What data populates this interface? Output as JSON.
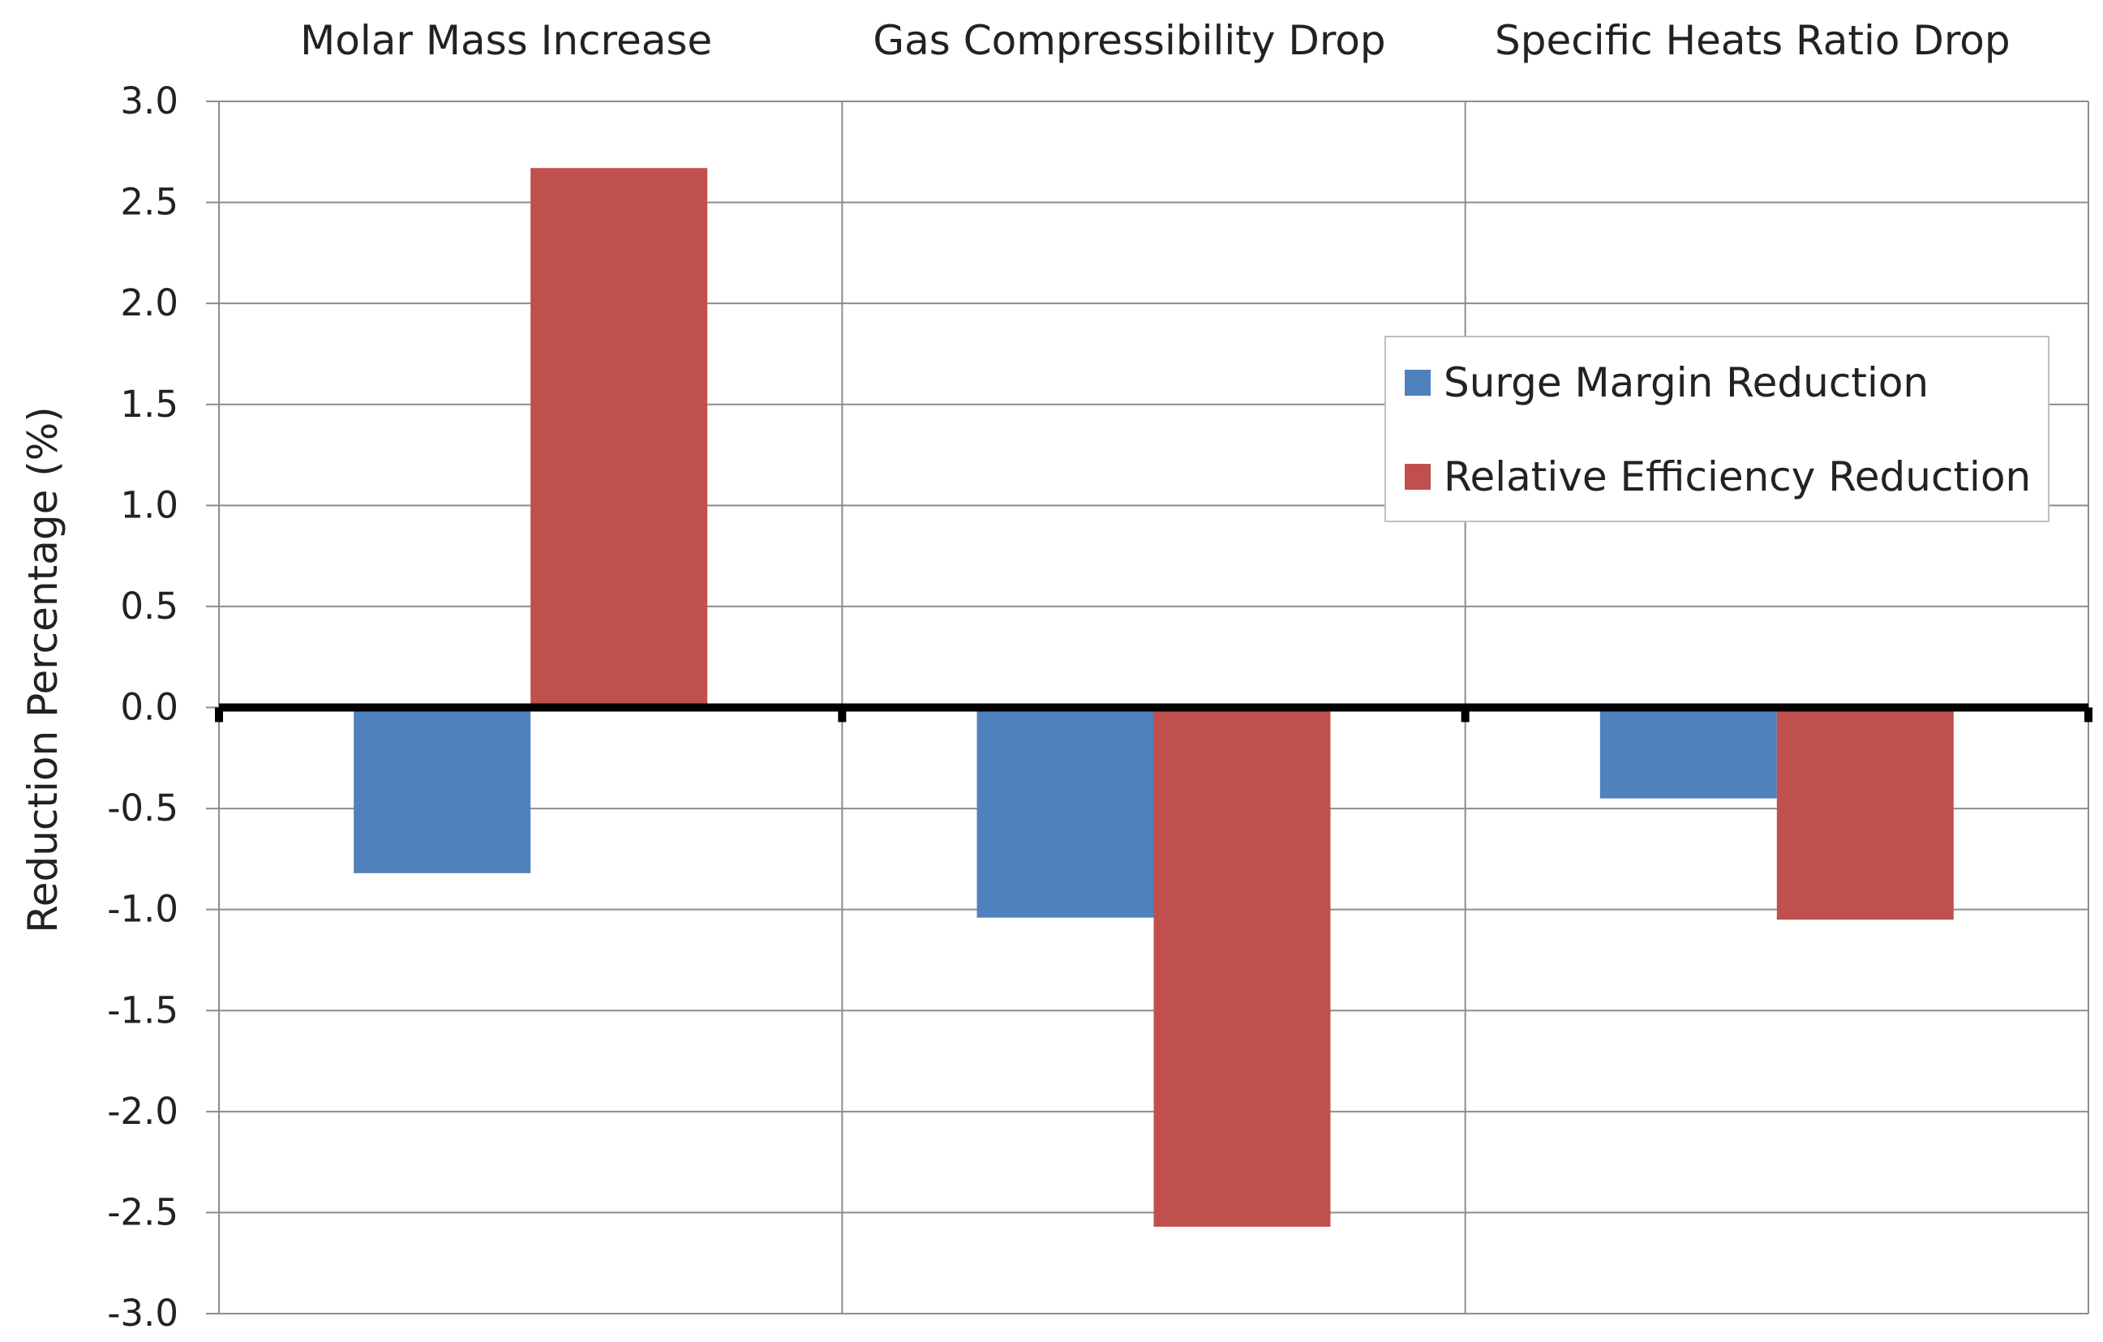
{
  "chart_data": {
    "type": "bar",
    "title": "",
    "xlabel": "",
    "ylabel": "Reduction Percentage (%)",
    "categories": [
      "Molar Mass Increase",
      "Gas Compressibility Drop",
      "Specific Heats Ratio Drop"
    ],
    "series": [
      {
        "name": "Surge Margin Reduction",
        "values": [
          -0.82,
          -1.04,
          -0.45
        ],
        "color": "#4f81bd"
      },
      {
        "name": "Relative Efficiency Reduction",
        "values": [
          2.67,
          -2.57,
          -1.05
        ],
        "color": "#c0504d"
      }
    ],
    "ylim": [
      -3.0,
      3.0
    ],
    "yticks": [
      "3.0",
      "2.5",
      "2.0",
      "1.5",
      "1.0",
      "0.5",
      "0.0",
      "-0.5",
      "-1.0",
      "-1.5",
      "-2.0",
      "-2.5",
      "-3.0"
    ],
    "grid": true,
    "category_labels_position": "top",
    "legend_position": "right"
  }
}
